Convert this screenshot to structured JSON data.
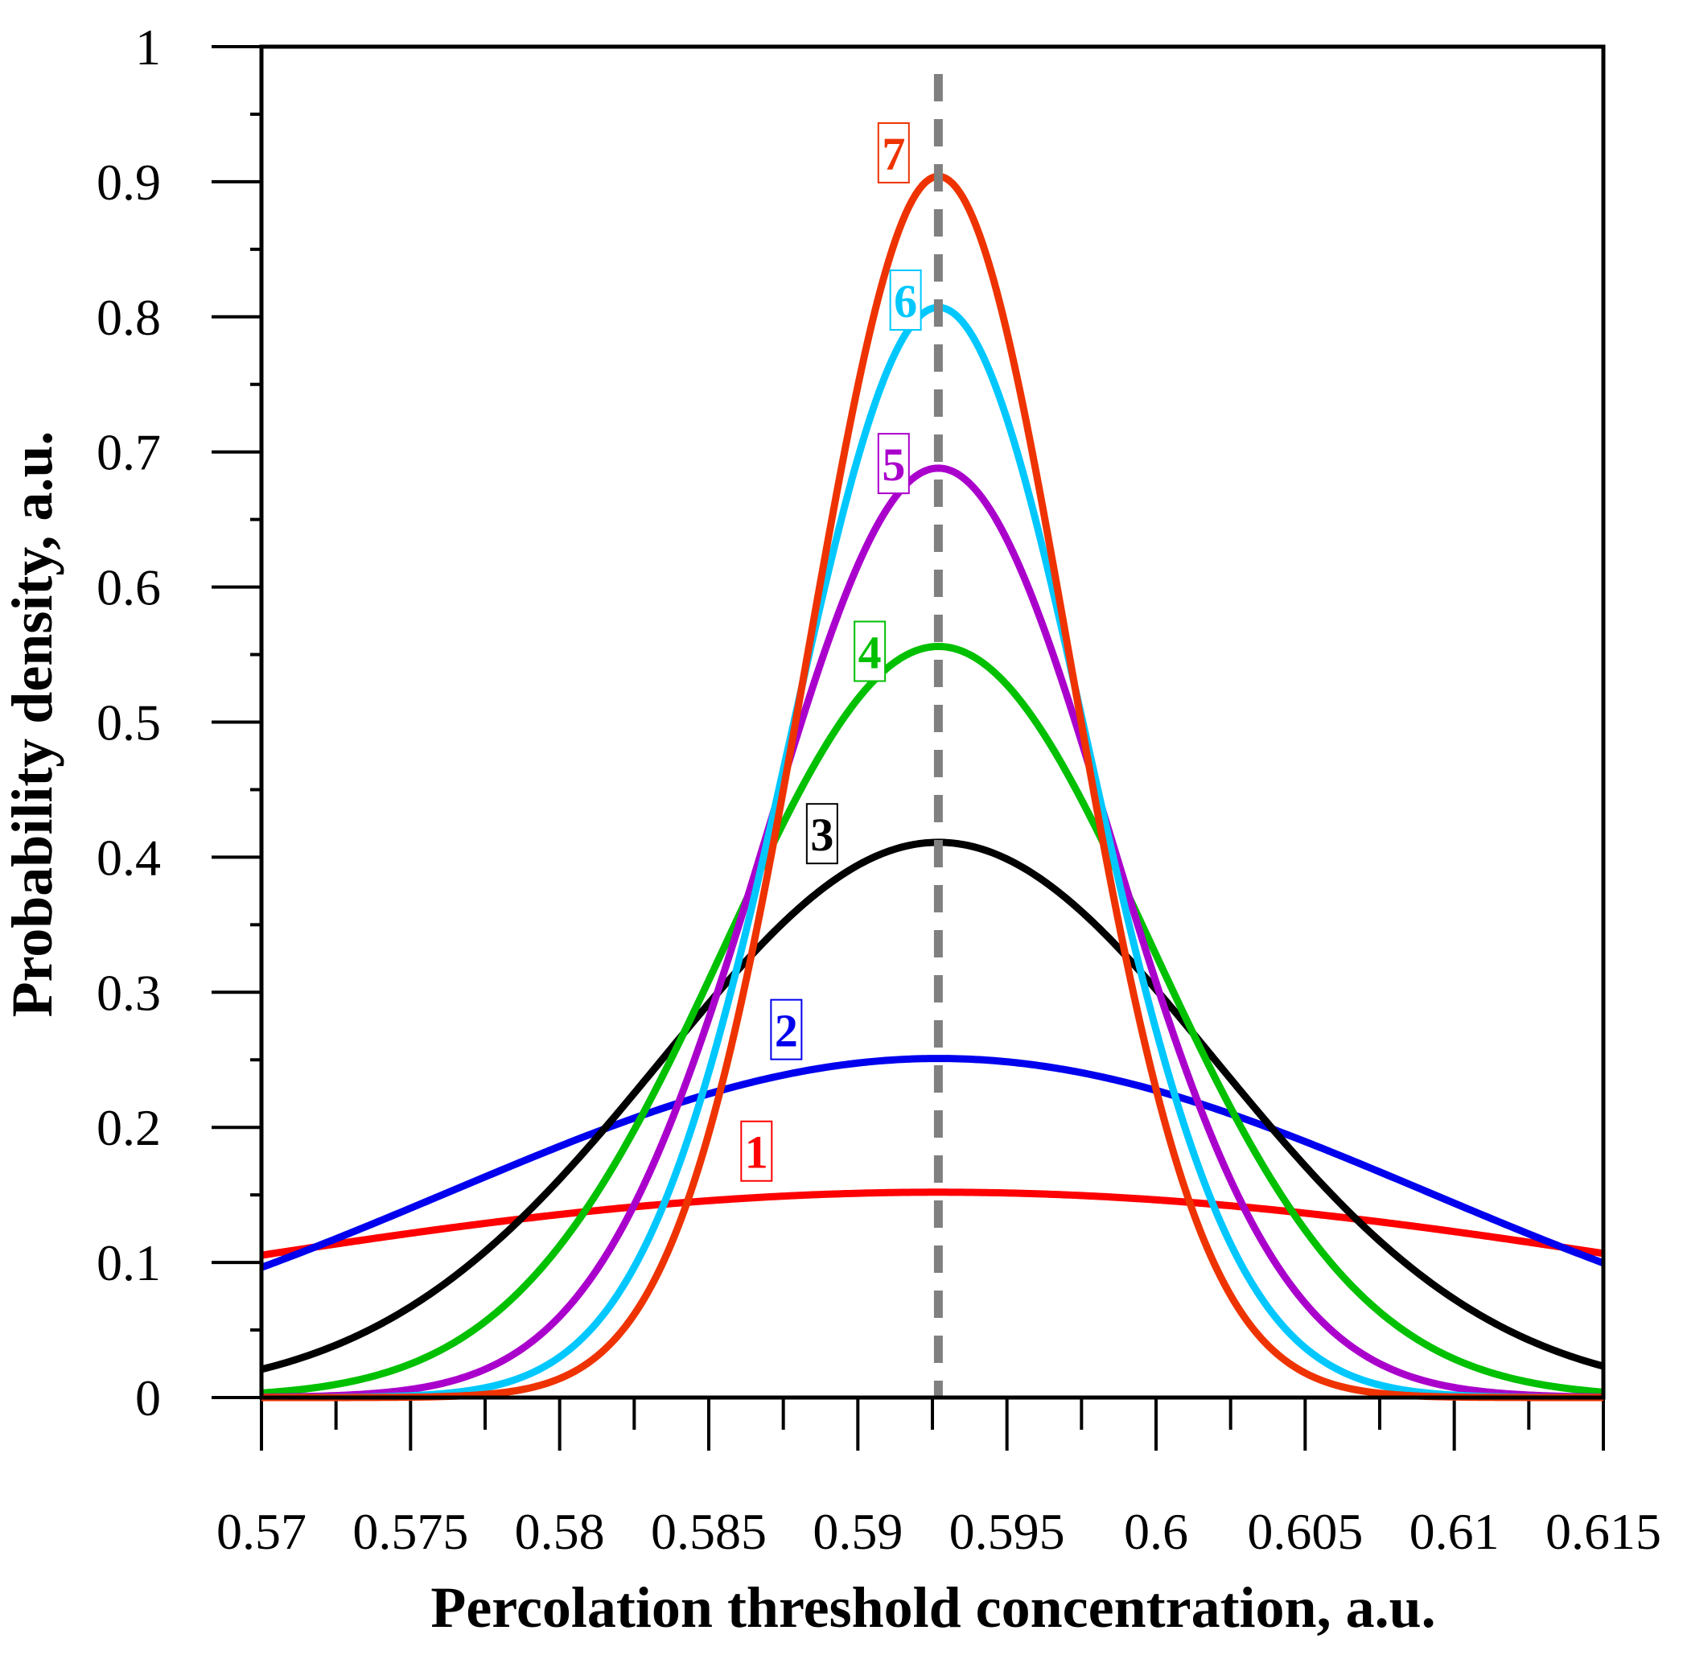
{
  "chart_data": {
    "type": "line",
    "title": "",
    "xlabel": "Percolation threshold concentration, a.u.",
    "ylabel": "Probability density, a.u.",
    "xlim": [
      0.57,
      0.615
    ],
    "ylim": [
      0,
      1
    ],
    "x_ticks": [
      "0.57",
      "0.575",
      "0.58",
      "0.585",
      "0.59",
      "0.595",
      "0.6",
      "0.605",
      "0.61",
      "0.615"
    ],
    "x_tick_values": [
      0.57,
      0.575,
      0.58,
      0.585,
      0.59,
      0.595,
      0.6,
      0.605,
      0.61,
      0.615
    ],
    "y_ticks": [
      "0",
      "0.1",
      "0.2",
      "0.3",
      "0.4",
      "0.5",
      "0.6",
      "0.7",
      "0.8",
      "0.9",
      "1"
    ],
    "y_tick_values": [
      0,
      0.1,
      0.2,
      0.3,
      0.4,
      0.5,
      0.6,
      0.7,
      0.8,
      0.9,
      1.0
    ],
    "reference_line": {
      "x": 0.5927,
      "style": "dashed",
      "color": "#808080"
    },
    "series": [
      {
        "name": "1",
        "label": "1",
        "peak": 0.152,
        "center": 0.5927,
        "sigma": 0.0265,
        "color": "#ff0000",
        "label_x": 0.5866,
        "label_y": 0.183
      },
      {
        "name": "2",
        "label": "2",
        "peak": 0.251,
        "center": 0.5927,
        "sigma": 0.0164,
        "color": "#0000ee",
        "label_x": 0.5876,
        "label_y": 0.273
      },
      {
        "name": "3",
        "label": "3",
        "peak": 0.411,
        "center": 0.5927,
        "sigma": 0.0093,
        "color": "#000000",
        "label_x": 0.5888,
        "label_y": 0.418
      },
      {
        "name": "4",
        "label": "4",
        "peak": 0.556,
        "center": 0.5927,
        "sigma": 0.0071,
        "color": "#00c000",
        "label_x": 0.5904,
        "label_y": 0.553
      },
      {
        "name": "5",
        "label": "5",
        "peak": 0.688,
        "center": 0.5927,
        "sigma": 0.00575,
        "color": "#aa00cc",
        "label_x": 0.5912,
        "label_y": 0.692
      },
      {
        "name": "6",
        "label": "6",
        "peak": 0.807,
        "center": 0.5927,
        "sigma": 0.00495,
        "color": "#00c8ff",
        "label_x": 0.5916,
        "label_y": 0.813
      },
      {
        "name": "7",
        "label": "7",
        "peak": 0.904,
        "center": 0.5927,
        "sigma": 0.0044,
        "color": "#ee3300",
        "label_x": 0.5912,
        "label_y": 0.922
      }
    ]
  }
}
